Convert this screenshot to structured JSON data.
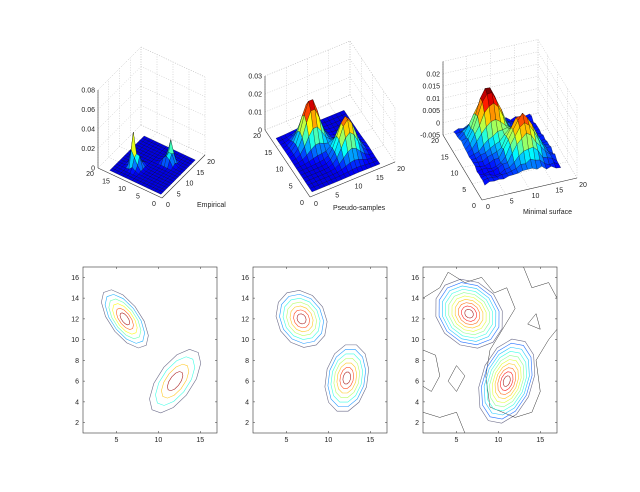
{
  "chart_data": [
    {
      "type": "surface",
      "label": "Empirical",
      "xticks": [
        0,
        5,
        10,
        15,
        20
      ],
      "yticks": [
        0,
        5,
        10,
        15,
        20
      ],
      "zticks": [
        "0",
        "0.02",
        "0.04",
        "0.06",
        "0.08"
      ],
      "zlim": [
        0,
        0.08
      ],
      "grid": true,
      "colormap": "jet",
      "surface_style": "spiky",
      "peaks": [
        {
          "x": 6,
          "y": 12,
          "z": 0.065,
          "spread": 0.9
        },
        {
          "x": 12,
          "y": 6,
          "z": 0.045,
          "spread": 0.9
        }
      ]
    },
    {
      "type": "surface",
      "label": "Pseudo-samples",
      "xticks": [
        0,
        5,
        10,
        15,
        20
      ],
      "yticks": [
        0,
        5,
        10,
        15,
        20
      ],
      "zticks": [
        "0",
        "0.01",
        "0.02",
        "0.03"
      ],
      "zlim": [
        0,
        0.03
      ],
      "grid": true,
      "colormap": "jet",
      "surface_style": "smooth",
      "peaks": [
        {
          "x": 6.5,
          "y": 12,
          "z": 0.026,
          "spread": 1.8
        },
        {
          "x": 12,
          "y": 6.5,
          "z": 0.021,
          "spread": 1.8
        }
      ]
    },
    {
      "type": "surface",
      "label": "Minimal surface",
      "xticks": [
        0,
        5,
        10,
        15,
        20
      ],
      "yticks": [
        0,
        5,
        10,
        15,
        20
      ],
      "zticks": [
        "-0.005",
        "0",
        "0.005",
        "0.01",
        "0.015",
        "0.02"
      ],
      "zlim": [
        -0.005,
        0.025
      ],
      "grid": true,
      "colormap": "jet",
      "surface_style": "smooth-noisy",
      "peaks": [
        {
          "x": 6.5,
          "y": 12.5,
          "z": 0.021,
          "spread": 2.3
        },
        {
          "x": 11,
          "y": 6,
          "z": 0.017,
          "spread": 2.3
        }
      ]
    },
    {
      "type": "contour",
      "xticks": [
        "5",
        "10",
        "15"
      ],
      "yticks": [
        "2",
        "4",
        "6",
        "8",
        "10",
        "12",
        "14",
        "16"
      ],
      "xlim": [
        1,
        17
      ],
      "ylim": [
        1,
        17
      ],
      "peaks": [
        {
          "x": 6,
          "y": 12,
          "major": 3.6,
          "minor": 1.7,
          "direction": "-45deg",
          "levels": 6
        },
        {
          "x": 12,
          "y": 6,
          "major": 3.9,
          "minor": 1.9,
          "direction": "45deg",
          "levels": 4
        }
      ]
    },
    {
      "type": "contour",
      "xticks": [
        "5",
        "10",
        "15"
      ],
      "yticks": [
        "2",
        "4",
        "6",
        "8",
        "10",
        "12",
        "14",
        "16"
      ],
      "xlim": [
        1,
        17
      ],
      "ylim": [
        1,
        17
      ],
      "peaks": [
        {
          "x": 6.8,
          "y": 12,
          "major": 3.2,
          "minor": 2.6,
          "direction": "-30deg",
          "levels": 7
        },
        {
          "x": 12.2,
          "y": 6.3,
          "major": 3.4,
          "minor": 2.5,
          "direction": "70deg",
          "levels": 7
        }
      ]
    },
    {
      "type": "contour",
      "xticks": [
        "5",
        "10",
        "15"
      ],
      "yticks": [
        "2",
        "4",
        "6",
        "8",
        "10",
        "12",
        "14",
        "16"
      ],
      "xlim": [
        1,
        17
      ],
      "ylim": [
        1,
        17
      ],
      "peaks": [
        {
          "x": 6.5,
          "y": 12.5,
          "major": 4.2,
          "minor": 3.2,
          "direction": "-20deg",
          "levels": 10
        },
        {
          "x": 11,
          "y": 6,
          "major": 4.4,
          "minor": 3.0,
          "direction": "60deg",
          "levels": 10
        }
      ]
    }
  ]
}
